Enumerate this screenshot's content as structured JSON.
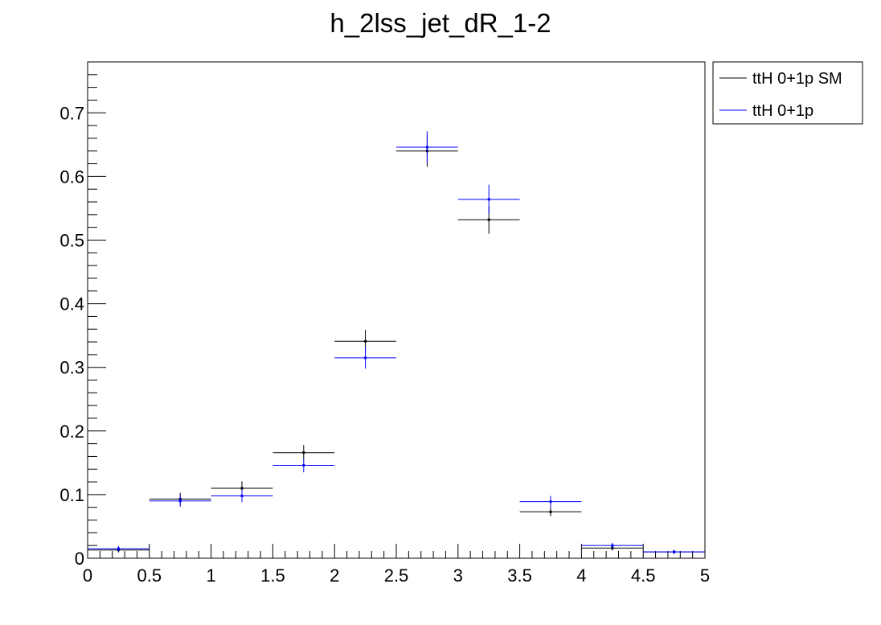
{
  "chart_data": {
    "type": "scatter",
    "title": "h_2lss_jet_dR_1-2",
    "xlabel": "",
    "ylabel": "",
    "xlim": [
      0,
      5
    ],
    "ylim": [
      0,
      0.78
    ],
    "x_ticks": [
      "0",
      "0.5",
      "1",
      "1.5",
      "2",
      "2.5",
      "3",
      "3.5",
      "4",
      "4.5",
      "5"
    ],
    "y_ticks": [
      "0",
      "0.1",
      "0.2",
      "0.3",
      "0.4",
      "0.5",
      "0.6",
      "0.7"
    ],
    "bin_edges": [
      0,
      0.5,
      1,
      1.5,
      2,
      2.5,
      3,
      3.5,
      4,
      4.5,
      5
    ],
    "legend_position": "top-right, outside plot",
    "grid": false,
    "series": [
      {
        "name": "ttH 0+1p SM",
        "color": "#000000",
        "values": [
          0.013,
          0.093,
          0.11,
          0.166,
          0.341,
          0.64,
          0.532,
          0.073,
          0.016,
          0.01
        ],
        "errors": [
          0.004,
          0.01,
          0.011,
          0.012,
          0.018,
          0.025,
          0.022,
          0.007,
          0.004,
          0.003
        ]
      },
      {
        "name": "ttH 0+1p",
        "color": "#0000ff",
        "values": [
          0.015,
          0.09,
          0.098,
          0.146,
          0.315,
          0.646,
          0.564,
          0.089,
          0.02,
          0.01
        ],
        "errors": [
          0.004,
          0.009,
          0.01,
          0.011,
          0.017,
          0.025,
          0.023,
          0.009,
          0.004,
          0.003
        ]
      }
    ]
  }
}
